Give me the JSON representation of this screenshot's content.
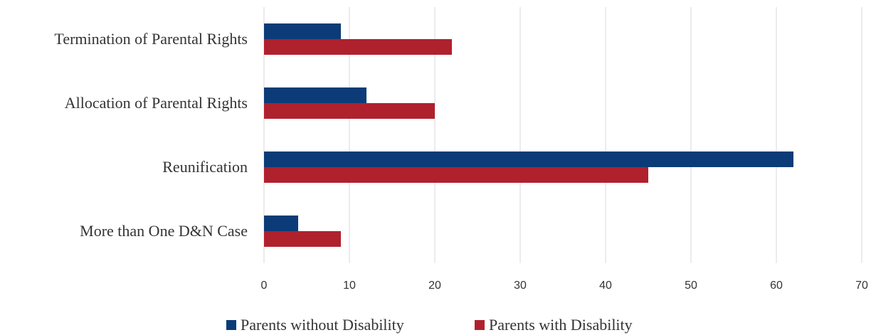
{
  "chart_data": {
    "type": "bar",
    "orientation": "horizontal",
    "categories": [
      "Termination of Parental Rights",
      "Allocation of Parental Rights",
      "Reunification",
      "More than One D&N Case"
    ],
    "series": [
      {
        "name": "Parents without Disability",
        "color": "#0b3c78",
        "values": [
          9,
          12,
          62,
          4
        ]
      },
      {
        "name": "Parents with Disability",
        "color": "#b0212e",
        "values": [
          22,
          20,
          45,
          9
        ]
      }
    ],
    "xlim": [
      0,
      70
    ],
    "xticks": [
      "0",
      "10",
      "20",
      "30",
      "40",
      "50",
      "60",
      "70"
    ],
    "grid": true,
    "legend_position": "bottom"
  }
}
